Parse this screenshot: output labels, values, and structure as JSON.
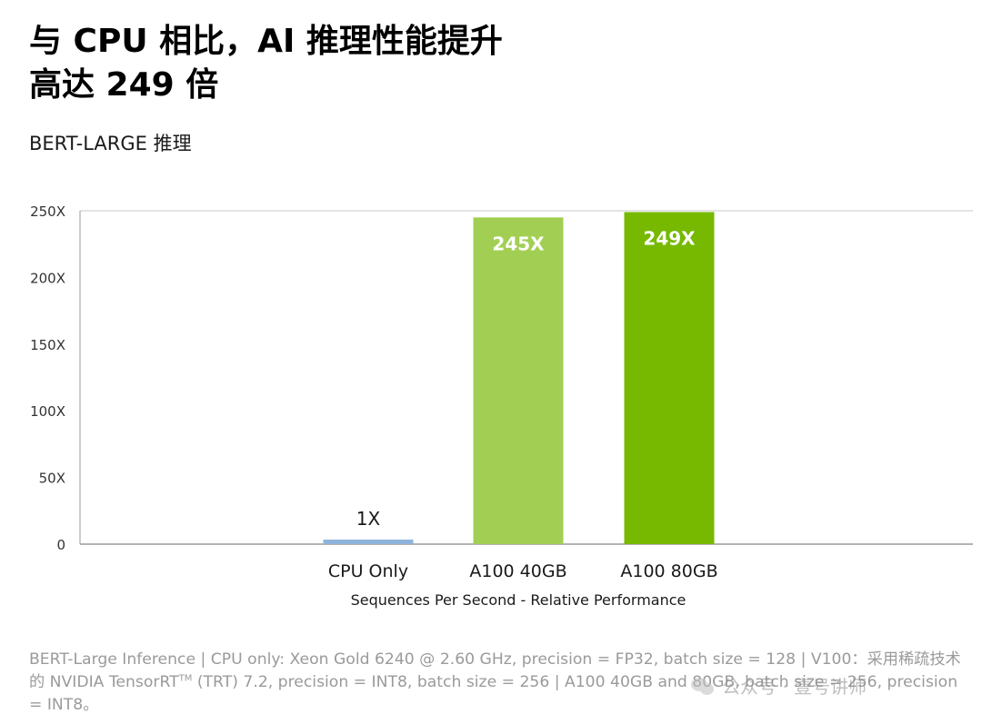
{
  "header": {
    "title_line1": "与 CPU 相比，AI 推理性能提升",
    "title_line2": "高达 249 倍",
    "subtitle": "BERT-LARGE 推理"
  },
  "chart_data": {
    "type": "bar",
    "categories": [
      "CPU Only",
      "A100 40GB",
      "A100 80GB"
    ],
    "values": [
      1,
      245,
      249
    ],
    "data_labels": [
      "1X",
      "245X",
      "249X"
    ],
    "colors": [
      "#8fb4dc",
      "#a2cf53",
      "#76b900"
    ],
    "xlabel": "Sequences Per Second - Relative Performance",
    "ylabel": "",
    "ylim": [
      0,
      250
    ],
    "yticks": [
      0,
      50,
      100,
      150,
      200,
      250
    ],
    "ytick_labels": [
      "0",
      "50X",
      "100X",
      "150X",
      "200X",
      "250X"
    ],
    "grid": false,
    "legend": "none"
  },
  "footnote": {
    "part1": "BERT-Large Inference | CPU only: Xeon Gold 6240 @ 2.60 GHz, precision = FP32, batch size = 128 | V100：采用稀疏技术的 NVIDIA TensorRT",
    "tm": "TM",
    "part2": " (TRT) 7.2, precision = INT8, batch size = 256 | A100 40GB and 80GB, batch size = 256, precision = INT8。"
  },
  "watermark": {
    "text": "公众号 · 壹号讲师"
  }
}
